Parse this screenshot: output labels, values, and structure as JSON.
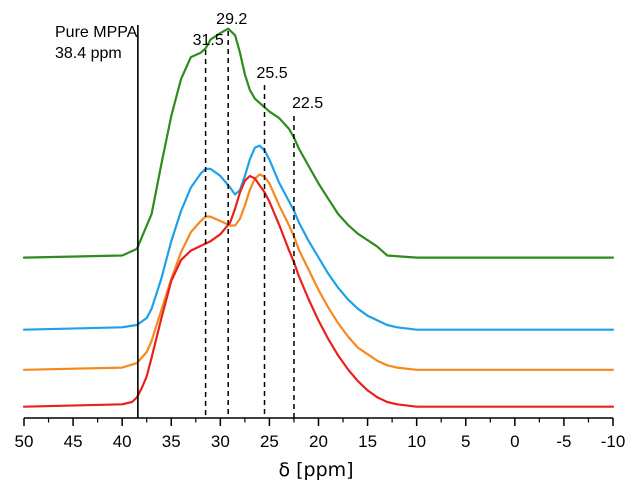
{
  "chart_data": {
    "type": "line",
    "title": "",
    "xlabel": "δ [ppm]",
    "ylabel": "",
    "xlim": [
      50,
      -10
    ],
    "x_reversed": true,
    "x_ticks": [
      50,
      45,
      40,
      35,
      30,
      25,
      20,
      15,
      10,
      5,
      0,
      -5,
      -10
    ],
    "x_tick_labels": [
      "50",
      "45",
      "40",
      "35",
      "30",
      "25",
      "20",
      "15",
      "10",
      "5",
      "0",
      "-5",
      "-10"
    ],
    "grid": false,
    "reference_line": {
      "x": 38.4,
      "label_line1": "Pure MPPA",
      "label_line2": "38.4 ppm"
    },
    "peak_markers": [
      {
        "x": 31.5,
        "label": "31.5"
      },
      {
        "x": 29.2,
        "label": "29.2"
      },
      {
        "x": 25.5,
        "label": "25.5"
      },
      {
        "x": 22.5,
        "label": "22.5"
      }
    ],
    "series": [
      {
        "color": "#2e8b1e",
        "x": [
          50,
          40,
          38.5,
          37,
          36,
          35,
          34,
          33,
          32,
          31.5,
          31,
          30,
          29.2,
          28.5,
          28,
          27.5,
          27,
          26.5,
          26,
          25.5,
          25,
          24,
          23,
          22.5,
          22,
          21,
          20,
          19,
          18,
          17,
          16,
          15,
          14,
          13,
          10,
          5,
          0,
          -5,
          -10
        ],
        "y": [
          0.02,
          0.03,
          0.06,
          0.22,
          0.45,
          0.67,
          0.84,
          0.94,
          0.96,
          0.98,
          1.02,
          1.05,
          1.07,
          1.04,
          0.96,
          0.86,
          0.79,
          0.75,
          0.73,
          0.71,
          0.69,
          0.66,
          0.61,
          0.57,
          0.52,
          0.44,
          0.36,
          0.29,
          0.22,
          0.17,
          0.13,
          0.1,
          0.07,
          0.03,
          0.02,
          0.02,
          0.02,
          0.02,
          0.02
        ]
      },
      {
        "color": "#1ea1e8",
        "x": [
          50,
          40,
          38.5,
          37.5,
          37,
          36,
          35,
          34,
          33,
          32,
          31.5,
          31,
          30,
          29,
          28.5,
          28,
          27.5,
          27,
          26.5,
          26,
          25.5,
          25,
          24,
          23,
          22.5,
          22,
          21,
          20,
          19,
          18,
          17,
          16,
          15,
          14,
          13,
          12,
          10,
          5,
          0,
          -5,
          -10
        ],
        "y": [
          0.01,
          0.02,
          0.03,
          0.06,
          0.1,
          0.23,
          0.39,
          0.52,
          0.62,
          0.68,
          0.7,
          0.7,
          0.67,
          0.62,
          0.59,
          0.61,
          0.67,
          0.74,
          0.79,
          0.8,
          0.78,
          0.74,
          0.64,
          0.56,
          0.52,
          0.47,
          0.39,
          0.32,
          0.25,
          0.19,
          0.14,
          0.1,
          0.07,
          0.05,
          0.03,
          0.02,
          0.01,
          0.01,
          0.01,
          0.01,
          0.01
        ]
      },
      {
        "color": "#f5891e",
        "x": [
          50,
          40,
          38.5,
          37.5,
          37,
          36,
          35,
          34,
          33,
          32,
          31.5,
          31,
          30,
          29,
          28.5,
          28,
          27.5,
          27,
          26.5,
          26,
          25.5,
          25,
          24,
          23,
          22.5,
          22,
          21,
          20,
          19,
          18,
          17,
          16,
          15,
          14,
          13,
          12,
          10,
          5,
          0,
          -5,
          -10
        ],
        "y": [
          0.01,
          0.02,
          0.04,
          0.09,
          0.14,
          0.28,
          0.42,
          0.54,
          0.63,
          0.68,
          0.7,
          0.7,
          0.68,
          0.66,
          0.66,
          0.69,
          0.75,
          0.82,
          0.87,
          0.89,
          0.88,
          0.85,
          0.75,
          0.66,
          0.61,
          0.55,
          0.46,
          0.37,
          0.29,
          0.22,
          0.16,
          0.11,
          0.08,
          0.05,
          0.03,
          0.02,
          0.01,
          0.01,
          0.01,
          0.01,
          0.01
        ]
      },
      {
        "color": "#e8211e",
        "x": [
          50,
          40,
          39,
          38.5,
          38,
          37.5,
          37,
          36,
          35,
          34,
          33,
          32,
          31.5,
          31,
          30,
          29,
          28.5,
          28,
          27.5,
          27,
          26.5,
          26,
          25.5,
          25,
          24,
          23,
          22.5,
          22,
          21,
          20,
          19,
          18,
          17,
          16,
          15,
          14,
          13,
          12,
          10,
          5,
          0,
          -5,
          -10
        ],
        "y": [
          0.01,
          0.02,
          0.03,
          0.05,
          0.09,
          0.14,
          0.22,
          0.39,
          0.55,
          0.64,
          0.68,
          0.7,
          0.71,
          0.72,
          0.75,
          0.8,
          0.86,
          0.93,
          0.98,
          1.0,
          0.99,
          0.96,
          0.93,
          0.89,
          0.79,
          0.68,
          0.63,
          0.57,
          0.47,
          0.38,
          0.3,
          0.23,
          0.17,
          0.12,
          0.08,
          0.05,
          0.03,
          0.02,
          0.01,
          0.01,
          0.01,
          0.01,
          0.01
        ]
      }
    ]
  }
}
